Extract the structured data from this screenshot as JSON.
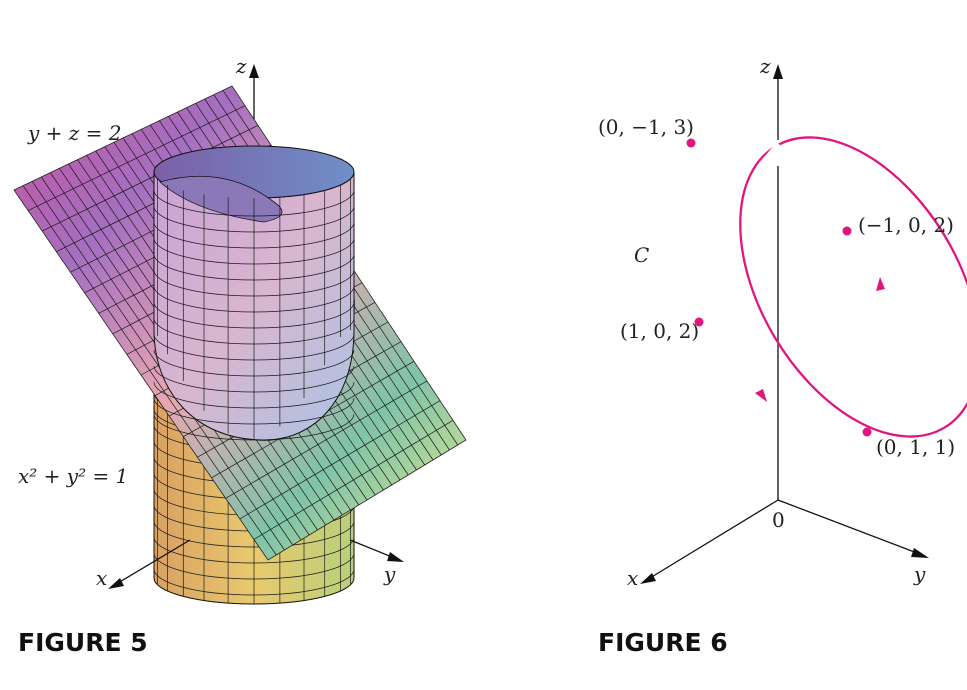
{
  "figure5": {
    "caption": "FIGURE 5",
    "plane_label": "y + z = 2",
    "cylinder_label": "x² + y² = 1",
    "axis_labels": {
      "x": "x",
      "y": "y",
      "z": "z"
    }
  },
  "figure6": {
    "caption": "FIGURE 6",
    "curve_label": "C",
    "origin_label": "0",
    "axis_labels": {
      "x": "x",
      "y": "y",
      "z": "z"
    },
    "points": [
      {
        "label": "(0, −1, 3)"
      },
      {
        "label": "(−1, 0, 2)"
      },
      {
        "label": "(1, 0, 2)"
      },
      {
        "label": "(0, 1, 1)"
      }
    ],
    "curve_color": "#e0157d"
  }
}
